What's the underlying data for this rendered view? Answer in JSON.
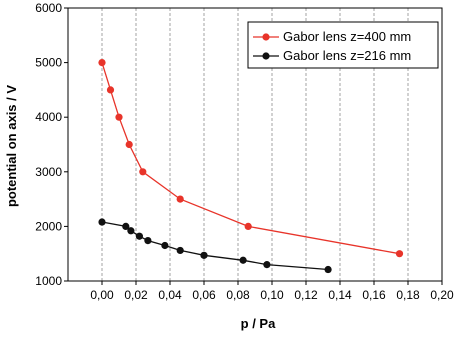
{
  "chart_data": {
    "type": "line",
    "xlabel": "p / Pa",
    "ylabel": "potential on axis / V",
    "xlim": [
      -0.02,
      0.2
    ],
    "ylim": [
      1000,
      6000
    ],
    "xticks": [
      "0,00",
      "0,02",
      "0,04",
      "0,06",
      "0,08",
      "0,10",
      "0,12",
      "0,14",
      "0,16",
      "0,18",
      "0,20"
    ],
    "xtick_values": [
      0,
      0.02,
      0.04,
      0.06,
      0.08,
      0.1,
      0.12,
      0.14,
      0.16,
      0.18,
      0.2
    ],
    "yticks": [
      "1000",
      "2000",
      "3000",
      "4000",
      "5000",
      "6000"
    ],
    "ytick_values": [
      1000,
      2000,
      3000,
      4000,
      5000,
      6000
    ],
    "grid": "vertical",
    "legend_position": "top-right",
    "series": [
      {
        "name": "Gabor lens z=400 mm",
        "color": "#e8342a",
        "x": [
          0.0,
          0.005,
          0.01,
          0.016,
          0.024,
          0.046,
          0.086,
          0.175
        ],
        "y": [
          5000,
          4500,
          4000,
          3500,
          3000,
          2500,
          2000,
          1500
        ]
      },
      {
        "name": "Gabor lens z=216 mm",
        "color": "#111111",
        "x": [
          0.0,
          0.014,
          0.017,
          0.022,
          0.027,
          0.037,
          0.046,
          0.06,
          0.083,
          0.097,
          0.133
        ],
        "y": [
          2080,
          2000,
          1920,
          1820,
          1740,
          1650,
          1560,
          1470,
          1380,
          1300,
          1210
        ]
      }
    ]
  }
}
